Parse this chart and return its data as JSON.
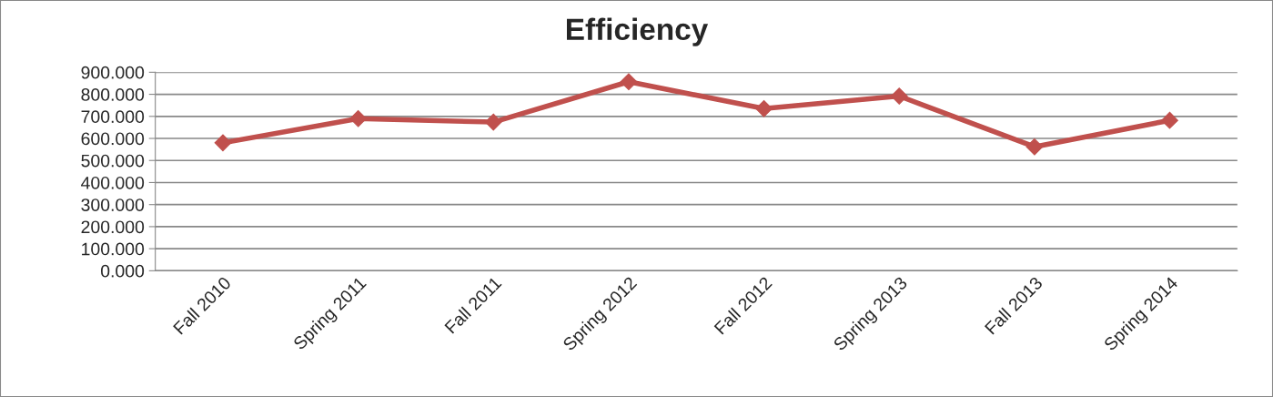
{
  "chart_data": {
    "type": "line",
    "title": "Efficiency",
    "categories": [
      "Fall 2010",
      "Spring 2011",
      "Fall 2011",
      "Spring 2012",
      "Fall 2012",
      "Spring 2013",
      "Fall 2013",
      "Spring 2014"
    ],
    "series": [
      {
        "color": "#c0504d",
        "values": [
          580,
          690,
          674,
          857,
          735,
          792,
          562,
          682
        ]
      }
    ],
    "ylim": [
      0,
      900
    ],
    "yticks": [
      {
        "value": 0,
        "label": "0.000"
      },
      {
        "value": 100,
        "label": "100.000"
      },
      {
        "value": 200,
        "label": "200.000"
      },
      {
        "value": 300,
        "label": "300.000"
      },
      {
        "value": 400,
        "label": "400.000"
      },
      {
        "value": 500,
        "label": "500.000"
      },
      {
        "value": 600,
        "label": "600.000"
      },
      {
        "value": 700,
        "label": "700.000"
      },
      {
        "value": 800,
        "label": "800.000"
      },
      {
        "value": 900,
        "label": "900.000"
      }
    ],
    "grid": "y",
    "legend": false,
    "marker": "diamond",
    "line_style": "solid"
  }
}
